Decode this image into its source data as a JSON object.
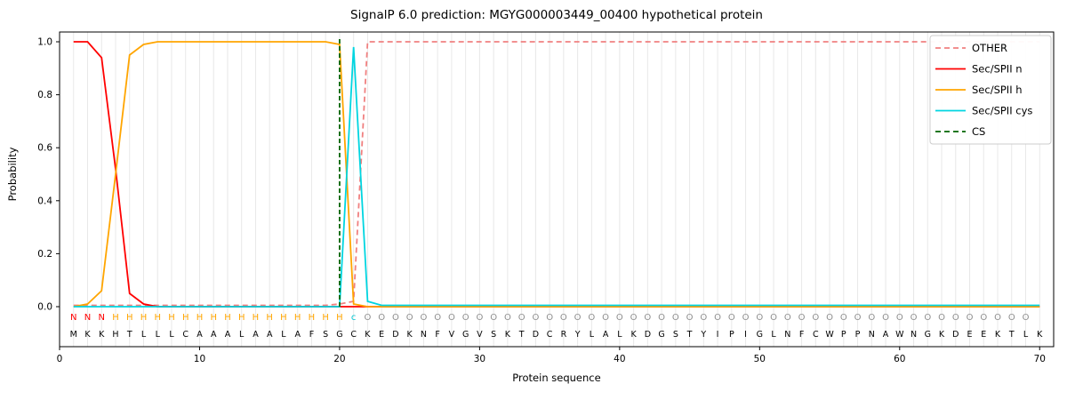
{
  "chart_data": {
    "type": "line",
    "title": "SignalP 6.0 prediction: MGYG000003449_00400 hypothetical protein",
    "xlabel": "Protein sequence",
    "ylabel": "Probability",
    "xlim": [
      0,
      71
    ],
    "ylim": [
      -0.15,
      1.05
    ],
    "xticks": [
      0,
      10,
      20,
      30,
      40,
      50,
      60,
      70
    ],
    "yticks": [
      "0.0",
      "0.2",
      "0.4",
      "0.6",
      "0.8",
      "1.0"
    ],
    "grid": {
      "vertical_per_residue": true,
      "color": "#e8e8e8",
      "horizontal": false
    },
    "x": {
      "start": 1,
      "step": 1,
      "count": 70
    },
    "series": [
      {
        "name": "OTHER",
        "color": "#f08080",
        "dash": true,
        "values": [
          0.005,
          0.005,
          0.005,
          0.005,
          0.005,
          0.005,
          0.005,
          0.005,
          0.005,
          0.005,
          0.005,
          0.005,
          0.005,
          0.005,
          0.005,
          0.005,
          0.005,
          0.005,
          0.005,
          0.01,
          0.02,
          1,
          1,
          1,
          1,
          1,
          1,
          1,
          1,
          1,
          1,
          1,
          1,
          1,
          1,
          1,
          1,
          1,
          1,
          1,
          1,
          1,
          1,
          1,
          1,
          1,
          1,
          1,
          1,
          1,
          1,
          1,
          1,
          1,
          1,
          1,
          1,
          1,
          1,
          1,
          1,
          1,
          1,
          1,
          1,
          1,
          1,
          1,
          1,
          1
        ]
      },
      {
        "name": "Sec/SPII n",
        "color": "#ff0000",
        "dash": false,
        "values": [
          1,
          1,
          0.94,
          0.52,
          0.05,
          0.01,
          0,
          0,
          0,
          0,
          0,
          0,
          0,
          0,
          0,
          0,
          0,
          0,
          0,
          0,
          0,
          0,
          0,
          0,
          0,
          0,
          0,
          0,
          0,
          0,
          0,
          0,
          0,
          0,
          0,
          0,
          0,
          0,
          0,
          0,
          0,
          0,
          0,
          0,
          0,
          0,
          0,
          0,
          0,
          0,
          0,
          0,
          0,
          0,
          0,
          0,
          0,
          0,
          0,
          0,
          0,
          0,
          0,
          0,
          0,
          0,
          0,
          0,
          0,
          0
        ]
      },
      {
        "name": "Sec/SPII h",
        "color": "#ffa500",
        "dash": false,
        "values": [
          0,
          0.01,
          0.06,
          0.5,
          0.95,
          0.99,
          1,
          1,
          1,
          1,
          1,
          1,
          1,
          1,
          1,
          1,
          1,
          1,
          1,
          0.99,
          0.01,
          0,
          0,
          0,
          0,
          0,
          0,
          0,
          0,
          0,
          0,
          0,
          0,
          0,
          0,
          0,
          0,
          0,
          0,
          0,
          0,
          0,
          0,
          0,
          0,
          0,
          0,
          0,
          0,
          0,
          0,
          0,
          0,
          0,
          0,
          0,
          0,
          0,
          0,
          0,
          0,
          0,
          0,
          0,
          0,
          0,
          0,
          0,
          0,
          0
        ]
      },
      {
        "name": "Sec/SPII cys",
        "color": "#00d5e0",
        "dash": false,
        "values": [
          0,
          0,
          0,
          0,
          0,
          0,
          0,
          0,
          0,
          0,
          0,
          0,
          0,
          0,
          0,
          0,
          0,
          0,
          0,
          0,
          0.98,
          0.02,
          0.005,
          0.005,
          0.005,
          0.005,
          0.005,
          0.005,
          0.005,
          0.005,
          0.005,
          0.005,
          0.005,
          0.005,
          0.005,
          0.005,
          0.005,
          0.005,
          0.005,
          0.005,
          0.005,
          0.005,
          0.005,
          0.005,
          0.005,
          0.005,
          0.005,
          0.005,
          0.005,
          0.005,
          0.005,
          0.005,
          0.005,
          0.005,
          0.005,
          0.005,
          0.005,
          0.005,
          0.005,
          0.005,
          0.005,
          0.005,
          0.005,
          0.005,
          0.005,
          0.005,
          0.005,
          0.005,
          0.005,
          0.005
        ]
      }
    ],
    "cs_line": {
      "x": 20,
      "color": "#006400",
      "label": "CS",
      "dash": true
    },
    "sequence": {
      "letters": "MKKHTLLLCAAALAALAFSGCKEDKNFVGVSKTDCRYLALKDGSTYIPIGLNFCWPPNAWNGKDEEKTLK",
      "color": "#000000"
    },
    "annotation": {
      "letters": "NNNHHHHHHHHHHHHHHHHHcOOOOOOOOOOOOOOOOOOOOOOOOOOOOOOOOOOOOOOOOOOOOOOOO",
      "colors": {
        "N": "#ff0000",
        "H": "#ffa500",
        "c": "#00c5d0",
        "O": "#8f8f8f"
      }
    },
    "legend": {
      "position": "upper right",
      "border_color": "#cccccc",
      "entries": [
        {
          "label": "OTHER",
          "color": "#f08080",
          "dash": true
        },
        {
          "label": "Sec/SPII n",
          "color": "#ff0000",
          "dash": false
        },
        {
          "label": "Sec/SPII h",
          "color": "#ffa500",
          "dash": false
        },
        {
          "label": "Sec/SPII cys",
          "color": "#00d5e0",
          "dash": false
        },
        {
          "label": "CS",
          "color": "#006400",
          "dash": true
        }
      ]
    }
  }
}
